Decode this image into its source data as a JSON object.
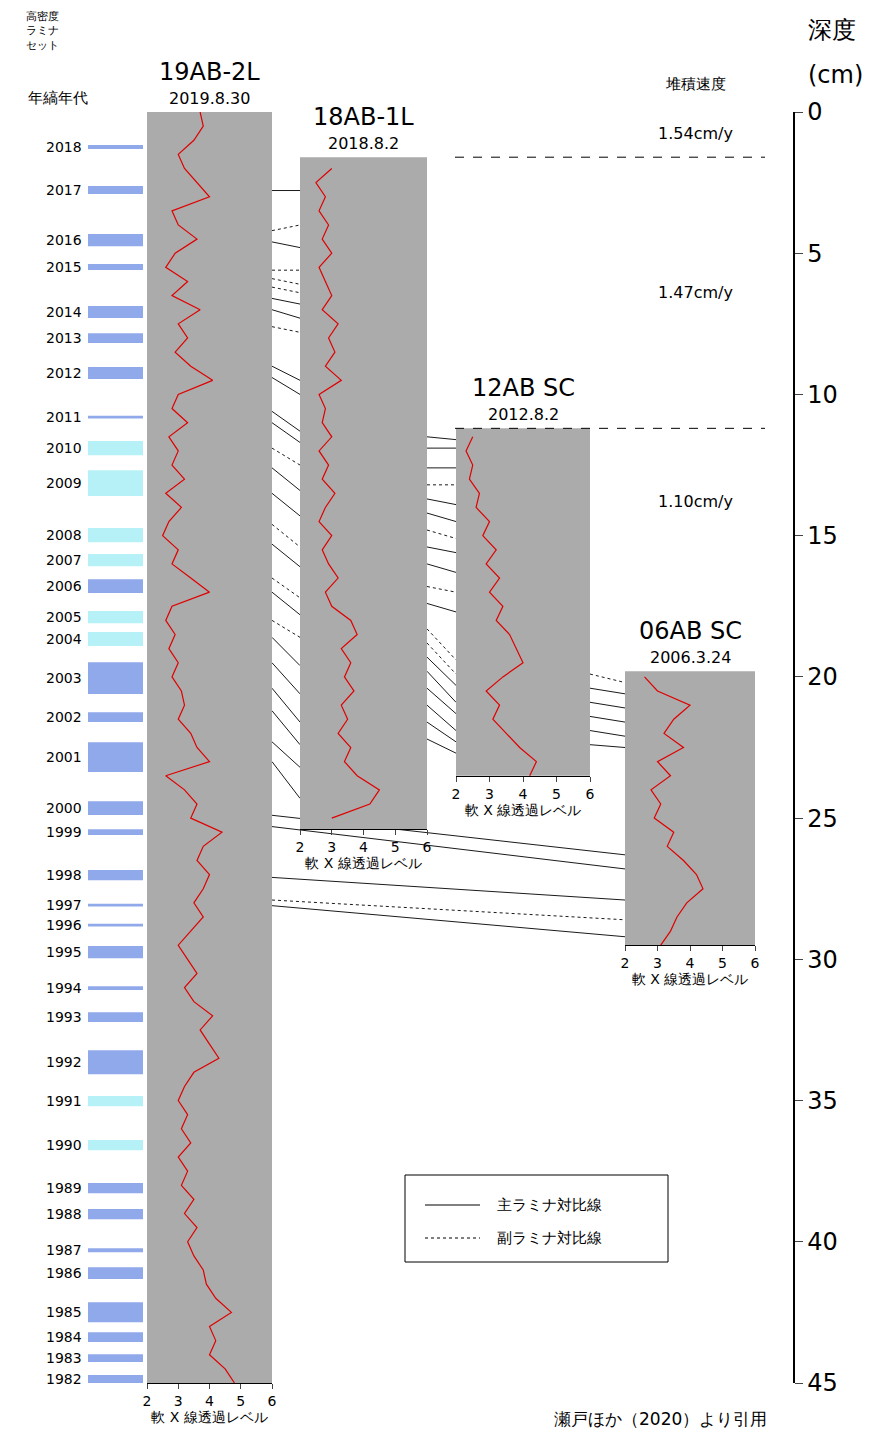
{
  "chart_data": {
    "type": "line",
    "ylabel": [
      "深度",
      "(cm)"
    ],
    "ylim": [
      45,
      0
    ],
    "yticks": [
      0,
      5,
      10,
      15,
      20,
      25,
      30,
      35,
      40,
      45
    ],
    "xlabel": "軟 X 線透過レベル",
    "xlim": [
      2,
      6
    ],
    "xticks": [
      2,
      3,
      4,
      5,
      6
    ],
    "grid": false,
    "series": [
      {
        "name": "19AB-2L",
        "date": "2019.8.30",
        "color": "#e00000",
        "core_range": [
          0,
          45
        ],
        "depth": [
          0,
          0.5,
          1,
          1.5,
          2,
          2.5,
          3,
          3.5,
          4,
          4.5,
          5,
          5.5,
          6,
          6.5,
          7,
          7.5,
          8,
          8.5,
          9,
          9.5,
          10,
          10.5,
          11,
          11.5,
          12,
          12.5,
          13,
          13.5,
          14,
          14.5,
          15,
          15.5,
          16,
          16.5,
          17,
          17.5,
          18,
          18.5,
          19,
          19.5,
          20,
          20.5,
          21,
          21.5,
          22,
          22.5,
          23,
          23.5,
          24,
          24.5,
          25,
          25.5,
          26,
          26.5,
          27,
          27.5,
          28,
          28.5,
          29,
          29.5,
          30,
          30.5,
          31,
          31.5,
          32,
          32.5,
          33,
          33.5,
          34,
          34.5,
          35,
          35.5,
          36,
          36.5,
          37,
          37.5,
          38,
          38.5,
          39,
          39.5,
          40,
          40.5,
          41,
          41.5,
          42,
          42.5,
          43,
          43.5,
          44,
          44.5,
          45
        ],
        "values": [
          3.7,
          3.8,
          3.5,
          3.0,
          3.2,
          3.6,
          4.0,
          2.8,
          3.0,
          3.6,
          2.9,
          2.6,
          3.3,
          2.8,
          3.7,
          3.0,
          3.3,
          2.9,
          3.4,
          4.1,
          3.0,
          2.8,
          3.3,
          2.7,
          3.0,
          2.8,
          3.2,
          2.6,
          3.1,
          2.7,
          2.5,
          3.0,
          2.8,
          3.4,
          4.0,
          2.8,
          2.6,
          2.9,
          2.7,
          3.0,
          2.8,
          3.1,
          3.2,
          3.0,
          3.4,
          3.6,
          4.0,
          2.6,
          3.2,
          3.6,
          3.4,
          4.4,
          3.8,
          3.6,
          4.0,
          3.8,
          3.5,
          3.8,
          3.4,
          3.0,
          3.3,
          3.6,
          3.2,
          3.5,
          4.1,
          3.7,
          4.0,
          4.3,
          3.5,
          3.2,
          3.0,
          3.3,
          3.1,
          3.4,
          3.0,
          3.3,
          3.1,
          3.5,
          3.2,
          3.6,
          3.3,
          3.5,
          3.8,
          3.9,
          4.2,
          4.7,
          4.0,
          4.2,
          4.0,
          4.5,
          4.8
        ]
      },
      {
        "name": "18AB-1L",
        "date": "2018.8.2",
        "color": "#e00000",
        "core_range": [
          1.6,
          25.4
        ],
        "depth": [
          2,
          2.5,
          3,
          3.5,
          4,
          4.5,
          5,
          5.5,
          6,
          6.5,
          7,
          7.5,
          8,
          8.5,
          9,
          9.5,
          10,
          10.5,
          11,
          11.5,
          12,
          12.5,
          13,
          13.5,
          14,
          14.5,
          15,
          15.5,
          16,
          16.5,
          17,
          17.5,
          18,
          18.5,
          19,
          19.5,
          20,
          20.5,
          21,
          21.5,
          22,
          22.5,
          23,
          23.5,
          24,
          24.5,
          25
        ],
        "values": [
          3.0,
          2.5,
          2.8,
          2.6,
          2.9,
          2.7,
          3.0,
          2.6,
          2.8,
          3.0,
          2.7,
          3.2,
          2.9,
          3.1,
          2.8,
          3.3,
          2.6,
          2.8,
          2.7,
          3.0,
          2.6,
          2.9,
          2.7,
          3.1,
          2.8,
          2.6,
          3.0,
          2.7,
          2.9,
          3.2,
          2.8,
          3.0,
          3.6,
          3.8,
          3.3,
          3.6,
          3.4,
          3.7,
          3.3,
          3.5,
          3.2,
          3.6,
          3.4,
          3.8,
          4.5,
          4.2,
          3.0
        ]
      },
      {
        "name": "12AB SC",
        "date": "2012.8.2",
        "color": "#e00000",
        "core_range": [
          11.2,
          23.5
        ],
        "depth": [
          11.5,
          12,
          12.5,
          13,
          13.5,
          14,
          14.5,
          15,
          15.5,
          16,
          16.5,
          17,
          17.5,
          18,
          18.5,
          19,
          19.5,
          20,
          20.5,
          21,
          21.5,
          22,
          22.5,
          23,
          23.5
        ],
        "values": [
          2.5,
          2.3,
          2.5,
          2.4,
          2.7,
          2.6,
          3.0,
          2.8,
          3.2,
          2.9,
          3.3,
          3.0,
          3.4,
          3.2,
          3.6,
          3.8,
          4.0,
          3.4,
          2.9,
          3.3,
          3.1,
          3.5,
          3.9,
          4.4,
          4.2
        ]
      },
      {
        "name": "06AB SC",
        "date": "2006.3.24",
        "color": "#e00000",
        "core_range": [
          19.8,
          29.5
        ],
        "depth": [
          20,
          20.5,
          21,
          21.5,
          22,
          22.5,
          23,
          23.5,
          24,
          24.5,
          25,
          25.5,
          26,
          26.5,
          27,
          27.5,
          28,
          28.5,
          29,
          29.5
        ],
        "values": [
          2.6,
          3.0,
          4.0,
          3.5,
          3.2,
          3.8,
          3.0,
          3.4,
          2.8,
          3.1,
          2.9,
          3.5,
          3.3,
          3.8,
          4.2,
          4.4,
          3.9,
          3.6,
          3.4,
          3.1
        ]
      }
    ],
    "set_label": "高密度ラミナセット",
    "varve_label": "年縞年代",
    "varves": [
      {
        "year": 2018,
        "top": 1.17,
        "bottom": 1.31,
        "color": "#8fa9ea"
      },
      {
        "year": 2017,
        "top": 2.62,
        "bottom": 2.9,
        "color": "#8fa9ea"
      },
      {
        "year": 2016,
        "top": 4.32,
        "bottom": 4.75,
        "color": "#8fa9ea"
      },
      {
        "year": 2015,
        "top": 5.38,
        "bottom": 5.59,
        "color": "#8fa9ea"
      },
      {
        "year": 2014,
        "top": 6.87,
        "bottom": 7.29,
        "color": "#8fa9ea"
      },
      {
        "year": 2013,
        "top": 7.83,
        "bottom": 8.18,
        "color": "#8fa9ea"
      },
      {
        "year": 2012,
        "top": 9.03,
        "bottom": 9.45,
        "color": "#8fa9ea"
      },
      {
        "year": 2011,
        "top": 10.75,
        "bottom": 10.85,
        "color": "#8fa9ea"
      },
      {
        "year": 2010,
        "top": 11.65,
        "bottom": 12.15,
        "color": "#b7f1f8"
      },
      {
        "year": 2009,
        "top": 12.68,
        "bottom": 13.6,
        "color": "#b7f1f8"
      },
      {
        "year": 2008,
        "top": 14.73,
        "bottom": 15.23,
        "color": "#b7f1f8"
      },
      {
        "year": 2007,
        "top": 15.65,
        "bottom": 16.08,
        "color": "#b7f1f8"
      },
      {
        "year": 2006,
        "top": 16.54,
        "bottom": 17.03,
        "color": "#8fa9ea"
      },
      {
        "year": 2005,
        "top": 17.67,
        "bottom": 18.1,
        "color": "#b7f1f8"
      },
      {
        "year": 2004,
        "top": 18.41,
        "bottom": 18.91,
        "color": "#b7f1f8"
      },
      {
        "year": 2003,
        "top": 19.48,
        "bottom": 20.61,
        "color": "#8fa9ea"
      },
      {
        "year": 2002,
        "top": 21.25,
        "bottom": 21.6,
        "color": "#8fa9ea"
      },
      {
        "year": 2001,
        "top": 22.31,
        "bottom": 23.37,
        "color": "#8fa9ea"
      },
      {
        "year": 2000,
        "top": 24.4,
        "bottom": 24.89,
        "color": "#8fa9ea"
      },
      {
        "year": 1999,
        "top": 25.39,
        "bottom": 25.6,
        "color": "#8fa9ea"
      },
      {
        "year": 1998,
        "top": 26.84,
        "bottom": 27.2,
        "color": "#8fa9ea"
      },
      {
        "year": 1997,
        "top": 28.03,
        "bottom": 28.13,
        "color": "#8fa9ea"
      },
      {
        "year": 1996,
        "top": 28.74,
        "bottom": 28.84,
        "color": "#8fa9ea"
      },
      {
        "year": 1995,
        "top": 29.53,
        "bottom": 29.96,
        "color": "#8fa9ea"
      },
      {
        "year": 1994,
        "top": 30.95,
        "bottom": 31.09,
        "color": "#8fa9ea"
      },
      {
        "year": 1993,
        "top": 31.87,
        "bottom": 32.22,
        "color": "#8fa9ea"
      },
      {
        "year": 1992,
        "top": 33.22,
        "bottom": 34.07,
        "color": "#8fa9ea"
      },
      {
        "year": 1991,
        "top": 34.84,
        "bottom": 35.2,
        "color": "#b7f1f8"
      },
      {
        "year": 1990,
        "top": 36.4,
        "bottom": 36.76,
        "color": "#b7f1f8"
      },
      {
        "year": 1989,
        "top": 37.92,
        "bottom": 38.28,
        "color": "#8fa9ea"
      },
      {
        "year": 1988,
        "top": 38.84,
        "bottom": 39.2,
        "color": "#8fa9ea"
      },
      {
        "year": 1987,
        "top": 40.23,
        "bottom": 40.37,
        "color": "#8fa9ea"
      },
      {
        "year": 1986,
        "top": 40.9,
        "bottom": 41.32,
        "color": "#8fa9ea"
      },
      {
        "year": 1985,
        "top": 42.14,
        "bottom": 42.85,
        "color": "#8fa9ea"
      },
      {
        "year": 1984,
        "top": 43.2,
        "bottom": 43.55,
        "color": "#8fa9ea"
      },
      {
        "year": 1983,
        "top": 43.98,
        "bottom": 44.26,
        "color": "#8fa9ea"
      },
      {
        "year": 1982,
        "top": 44.72,
        "bottom": 45.0,
        "color": "#8fa9ea"
      }
    ],
    "rate_label": "堆積速度",
    "rates": [
      {
        "label": "1.54cm/y",
        "depth": 0.75
      },
      {
        "label": "1.47cm/y",
        "depth": 6.4
      },
      {
        "label": "1.10cm/y",
        "depth": 13.8
      }
    ],
    "rate_boundaries": [
      1.6,
      11.2
    ],
    "correlation_key": [
      {
        "kind": "main",
        "label": "主ラミナ対比線",
        "line_style": "solid"
      },
      {
        "kind": "sub",
        "label": "副ラミナ対比線",
        "line_style": "dot"
      }
    ],
    "correlations": [
      {
        "from": "19AB-2L",
        "to": "18AB-1L",
        "main": [
          [
            2.78,
            2.78
          ],
          [
            4.6,
            4.8
          ],
          [
            6.6,
            6.8
          ],
          [
            7.0,
            7.3
          ],
          [
            9.0,
            9.5
          ],
          [
            9.4,
            10.0
          ],
          [
            10.6,
            11.3
          ],
          [
            11.0,
            11.7
          ],
          [
            12.6,
            13.4
          ],
          [
            13.5,
            14.3
          ],
          [
            15.3,
            16.1
          ],
          [
            17.0,
            17.8
          ],
          [
            18.6,
            19.6
          ],
          [
            19.5,
            20.6
          ],
          [
            20.4,
            21.6
          ],
          [
            21.2,
            22.4
          ],
          [
            22.3,
            23.2
          ],
          [
            23.0,
            24.3
          ]
        ],
        "sub": [
          [
            4.2,
            4.0
          ],
          [
            5.6,
            5.6
          ],
          [
            5.9,
            6.1
          ],
          [
            6.2,
            6.4
          ],
          [
            7.6,
            7.8
          ],
          [
            11.9,
            12.5
          ],
          [
            14.6,
            15.4
          ],
          [
            16.5,
            17.2
          ],
          [
            18.0,
            18.6
          ]
        ]
      },
      {
        "from": "18AB-1L",
        "to": "12AB SC",
        "main": [
          [
            11.5,
            11.6
          ],
          [
            11.9,
            11.9
          ],
          [
            12.6,
            12.6
          ],
          [
            13.7,
            13.9
          ],
          [
            14.2,
            14.5
          ],
          [
            15.4,
            15.6
          ],
          [
            16.0,
            16.3
          ],
          [
            17.4,
            17.7
          ],
          [
            19.3,
            20.3
          ],
          [
            19.8,
            20.9
          ],
          [
            20.4,
            21.3
          ],
          [
            21.0,
            21.9
          ],
          [
            21.6,
            22.3
          ],
          [
            22.2,
            22.7
          ]
        ],
        "sub": [
          [
            13.2,
            13.2
          ],
          [
            14.8,
            15.1
          ],
          [
            16.8,
            17.0
          ],
          [
            18.3,
            19.4
          ],
          [
            18.8,
            19.9
          ]
        ]
      },
      {
        "from": "12AB SC",
        "to": "06AB SC",
        "main": [
          [
            20.4,
            20.6
          ],
          [
            20.9,
            21.1
          ],
          [
            21.4,
            21.6
          ],
          [
            21.9,
            22.1
          ],
          [
            22.4,
            22.5
          ]
        ],
        "sub": [
          [
            19.9,
            20.2
          ]
        ]
      },
      {
        "from": "19AB-2L",
        "to": "06AB SC",
        "main": [
          [
            24.9,
            26.3
          ],
          [
            25.3,
            26.8
          ],
          [
            27.1,
            27.9
          ],
          [
            28.1,
            29.2
          ]
        ],
        "sub": [
          [
            27.9,
            28.6
          ]
        ]
      }
    ],
    "source": "瀬戸ほか（2020）より引用"
  }
}
